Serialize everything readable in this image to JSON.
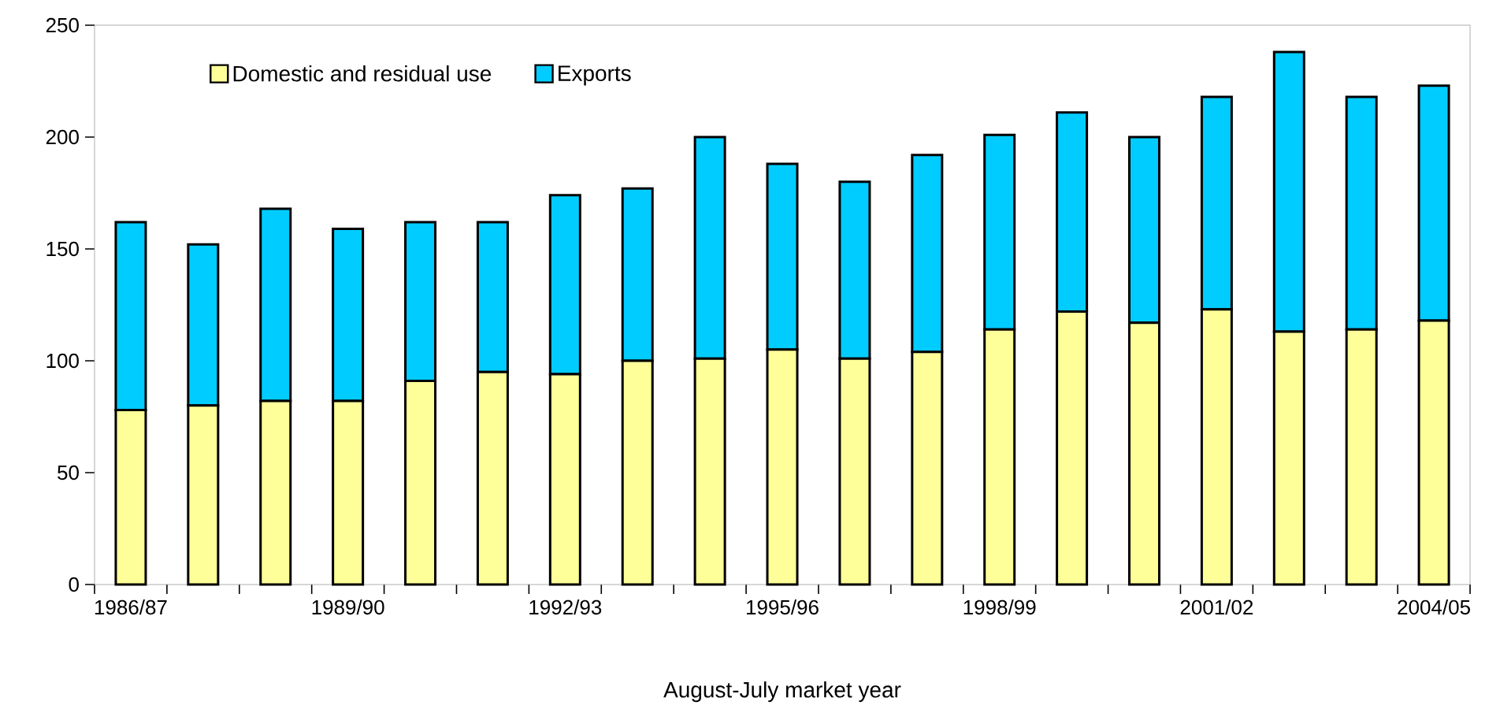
{
  "chart_data": {
    "type": "bar",
    "stacked": true,
    "xlabel": "August-July market year",
    "categories": [
      "1986/87",
      null,
      null,
      "1989/90",
      null,
      null,
      "1992/93",
      null,
      null,
      "1995/96",
      null,
      null,
      "1998/99",
      null,
      null,
      "2001/02",
      null,
      null,
      "2004/05"
    ],
    "series": [
      {
        "name": "Domestic and residual use",
        "color": "#ffff99",
        "values": [
          78,
          80,
          82,
          82,
          91,
          95,
          94,
          100,
          101,
          105,
          101,
          104,
          114,
          122,
          117,
          123,
          113,
          114,
          118
        ]
      },
      {
        "name": "Exports",
        "color": "#00ccff",
        "values": [
          84,
          72,
          86,
          77,
          71,
          67,
          80,
          77,
          99,
          83,
          79,
          88,
          87,
          89,
          83,
          95,
          125,
          104,
          105
        ]
      }
    ],
    "ylim": [
      0,
      250
    ],
    "yticks": [
      0,
      50,
      100,
      150,
      200,
      250
    ],
    "grid": false,
    "legend": "top left"
  }
}
